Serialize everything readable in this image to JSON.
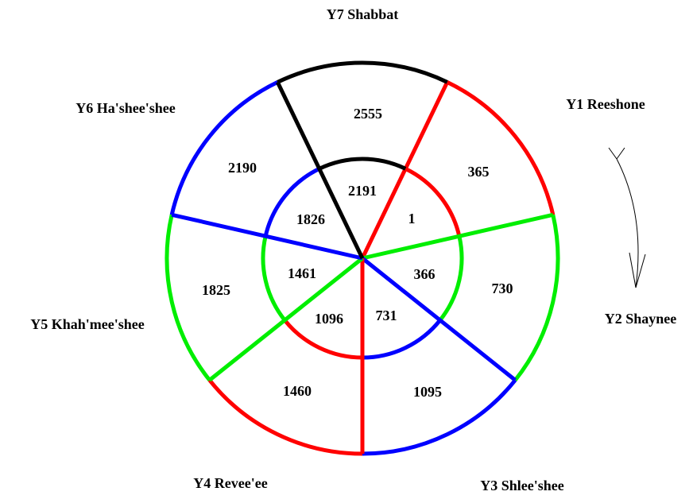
{
  "sectors": [
    {
      "name": "Y1 Reeshone",
      "inner": 1,
      "outer": 365,
      "color": "#ff0000"
    },
    {
      "name": "Y2 Shaynee",
      "inner": 366,
      "outer": 730,
      "color": "#00ee00"
    },
    {
      "name": "Y3 Shlee'shee",
      "inner": 731,
      "outer": 1095,
      "color": "#0000ff"
    },
    {
      "name": "Y4 Revee'ee",
      "inner": 1096,
      "outer": 1460,
      "color": "#ff0000"
    },
    {
      "name": "Y5 Khah'mee'shee",
      "inner": 1461,
      "outer": 1825,
      "color": "#00ee00"
    },
    {
      "name": "Y6 Ha'shee'shee",
      "inner": 1826,
      "outer": 2190,
      "color": "#0000ff"
    },
    {
      "name": "Y7 Shabbat",
      "inner": 2191,
      "outer": 2555,
      "color": "#000000"
    }
  ]
}
